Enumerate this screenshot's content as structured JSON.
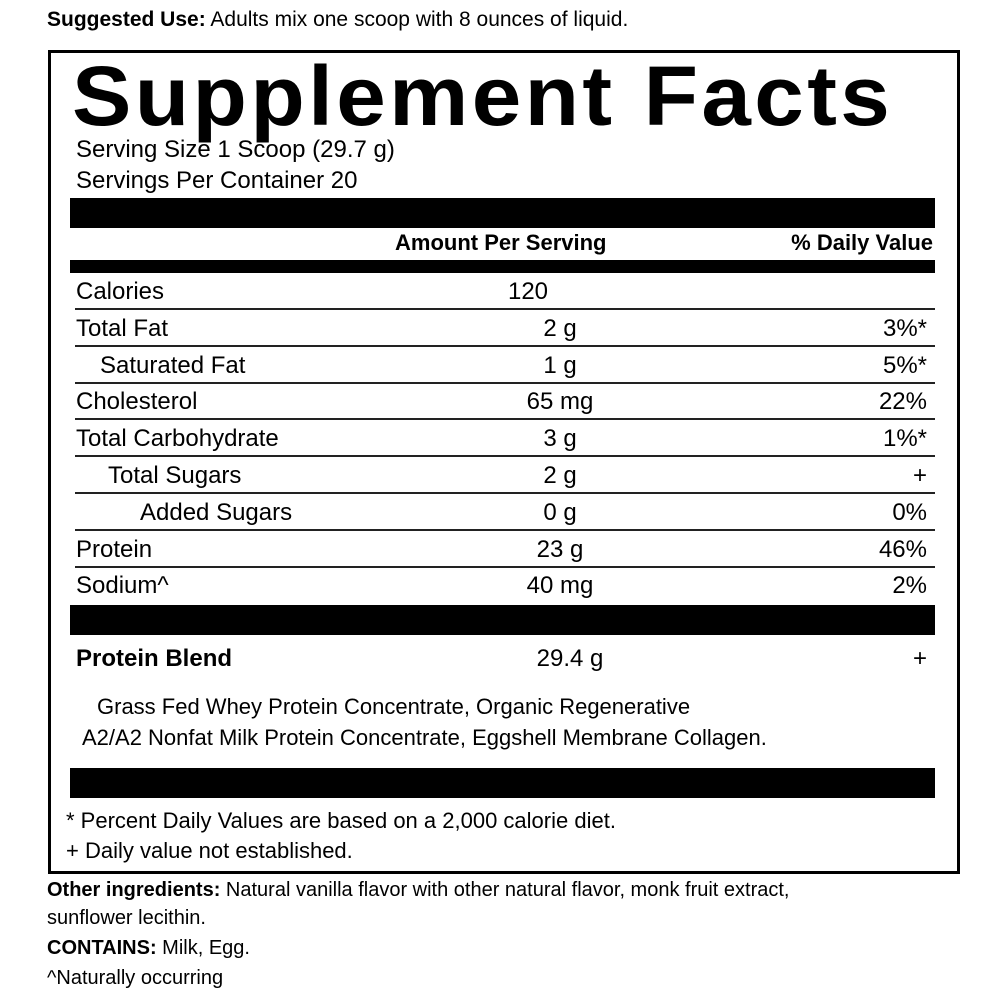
{
  "suggested_use": {
    "label": "Suggested Use:",
    "text": " Adults mix one scoop with 8 ounces of liquid."
  },
  "title": "Supplement Facts",
  "serving_size": "Serving Size 1 Scoop (29.7 g)",
  "servings_per_container": "Servings Per Container 20",
  "headers": {
    "amount": "Amount Per Serving",
    "dv": "% Daily Value"
  },
  "rows": [
    {
      "label": "Calories",
      "amount": "120",
      "dv": ""
    },
    {
      "label": "Total Fat",
      "amount": "2 g",
      "dv": "3%*"
    },
    {
      "label": "Saturated Fat",
      "amount": "1 g",
      "dv": "5%*"
    },
    {
      "label": "Cholesterol",
      "amount": "65 mg",
      "dv": "22%"
    },
    {
      "label": "Total Carbohydrate",
      "amount": "3 g",
      "dv": "1%*"
    },
    {
      "label": "Total Sugars",
      "amount": "2 g",
      "dv": "+"
    },
    {
      "label": "Added Sugars",
      "amount": "0 g",
      "dv": "0%"
    },
    {
      "label": "Protein",
      "amount": "23 g",
      "dv": "46%"
    },
    {
      "label": "Sodium^",
      "amount": "40 mg",
      "dv": "2%"
    }
  ],
  "blend": {
    "label": "Protein Blend",
    "amount": "29.4 g",
    "dv": "+",
    "line1": "Grass Fed Whey Protein Concentrate, Organic Regenerative",
    "line2": "A2/A2 Nonfat Milk Protein Concentrate, Eggshell Membrane Collagen."
  },
  "footnotes": [
    "* Percent Daily Values are based on a 2,000 calorie diet.",
    "+ Daily value not established."
  ],
  "other": {
    "label": "Other ingredients:",
    "text": " Natural vanilla flavor with other natural flavor, monk fruit extract,",
    "text2": "sunflower lecithin.",
    "contains_label": "CONTAINS:",
    "contains": " Milk, Egg.",
    "note": "^Naturally occurring"
  }
}
